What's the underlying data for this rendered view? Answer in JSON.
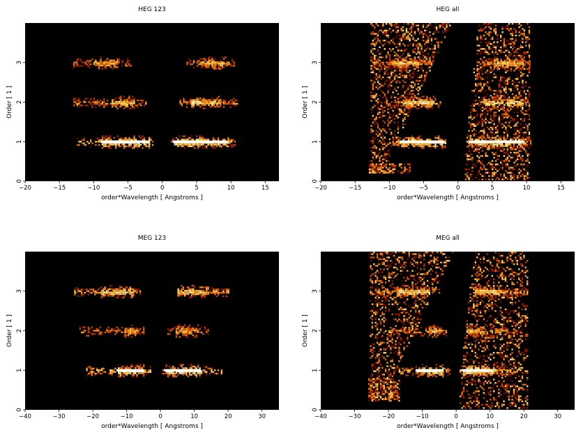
{
  "figure": {
    "background": "#ffffff",
    "plot_background": "#000000"
  },
  "chart_data": [
    {
      "type": "heatmap",
      "title": "HEG 123",
      "xlabel": "order*Wavelength [ Angstroms ]",
      "ylabel": "Order [ 1 ]",
      "xlim": [
        -20,
        17
      ],
      "ylim": [
        0,
        4
      ],
      "xticks": [
        -20,
        -15,
        -10,
        -5,
        0,
        5,
        10,
        15
      ],
      "yticks": [
        0,
        1,
        2,
        3
      ],
      "bands": [
        {
          "order": 1,
          "x_ranges": [
            [
              -12.5,
              -1.5
            ],
            [
              1.2,
              10.5
            ]
          ],
          "core_ranges": [
            [
              -9,
              -2
            ],
            [
              1.5,
              9.5
            ]
          ],
          "intensity": 1.0
        },
        {
          "order": 2,
          "x_ranges": [
            [
              -13,
              -2.5
            ],
            [
              2.5,
              11
            ]
          ],
          "core_ranges": [
            [
              -7.5,
              -4
            ],
            [
              4,
              8.5
            ]
          ],
          "intensity": 0.75
        },
        {
          "order": 3,
          "x_ranges": [
            [
              -13,
              -4.5
            ],
            [
              3.5,
              10.5
            ]
          ],
          "core_ranges": [
            [
              -10,
              -6.5
            ],
            [
              5.5,
              9.5
            ]
          ],
          "intensity": 0.6
        }
      ],
      "diffuse": []
    },
    {
      "type": "heatmap",
      "title": "HEG all",
      "xlabel": "order*Wavelength [ Angstroms ]",
      "ylabel": "Order [ 1 ]",
      "xlim": [
        -20,
        17
      ],
      "ylim": [
        0,
        4
      ],
      "xticks": [
        -20,
        -15,
        -10,
        -5,
        0,
        5,
        10,
        15
      ],
      "yticks": [
        0,
        1,
        2,
        3
      ],
      "bands": [
        {
          "order": 1,
          "x_ranges": [
            [
              -10,
              -1.5
            ],
            [
              1.2,
              10.5
            ]
          ],
          "core_ranges": [
            [
              -8.5,
              -2
            ],
            [
              1.5,
              9.5
            ]
          ],
          "intensity": 1.0
        },
        {
          "order": 2,
          "x_ranges": [
            [
              -10.5,
              -2.5
            ],
            [
              2.5,
              10.5
            ]
          ],
          "core_ranges": [
            [
              -8,
              -3.5
            ],
            [
              3.5,
              9.5
            ]
          ],
          "intensity": 0.85
        },
        {
          "order": 3,
          "x_ranges": [
            [
              -12.5,
              -4
            ],
            [
              3.5,
              10.5
            ]
          ],
          "core_ranges": [
            [
              -9.5,
              -6
            ],
            [
              5,
              9.5
            ]
          ],
          "intensity": 0.75
        }
      ],
      "diffuse": [
        {
          "x_range": [
            -13,
            -1
          ],
          "y_range": [
            0.2,
            4.0
          ],
          "edge": "left-wedge",
          "density": 0.35
        },
        {
          "x_range": [
            1,
            10.5
          ],
          "y_range": [
            0.05,
            4.0
          ],
          "edge": "right-wedge",
          "density": 0.35
        },
        {
          "x_range": [
            -13,
            -7
          ],
          "y_range": [
            0.2,
            0.45
          ],
          "edge": "blob",
          "density": 0.7
        }
      ]
    },
    {
      "type": "heatmap",
      "title": "MEG 123",
      "xlabel": "order*Wavelength [ Angstroms ]",
      "ylabel": "Order [ 1 ]",
      "xlim": [
        -40,
        35
      ],
      "ylim": [
        0,
        4
      ],
      "xticks": [
        -40,
        -30,
        -20,
        -10,
        0,
        10,
        20,
        30
      ],
      "yticks": [
        0,
        1,
        2,
        3
      ],
      "bands": [
        {
          "order": 1,
          "x_ranges": [
            [
              -22,
              -3
            ],
            [
              0.5,
              18
            ]
          ],
          "core_ranges": [
            [
              -13,
              -5
            ],
            [
              1,
              12
            ]
          ],
          "intensity": 1.0
        },
        {
          "order": 2,
          "x_ranges": [
            [
              -24,
              -5
            ],
            [
              2,
              14
            ]
          ],
          "core_ranges": [
            [
              -11,
              -7
            ],
            [
              4,
              11
            ]
          ],
          "intensity": 0.55
        },
        {
          "order": 3,
          "x_ranges": [
            [
              -26,
              -6
            ],
            [
              5,
              20
            ]
          ],
          "core_ranges": [
            [
              -18,
              -8
            ],
            [
              5,
              14
            ]
          ],
          "intensity": 0.8
        }
      ],
      "diffuse": []
    },
    {
      "type": "heatmap",
      "title": "MEG all",
      "xlabel": "order*Wavelength [ Angstroms ]",
      "ylabel": "Order [ 1 ]",
      "xlim": [
        -40,
        35
      ],
      "ylim": [
        0,
        4
      ],
      "xticks": [
        -40,
        -30,
        -20,
        -10,
        0,
        10,
        20,
        30
      ],
      "yticks": [
        0,
        1,
        2,
        3
      ],
      "bands": [
        {
          "order": 1,
          "x_ranges": [
            [
              -17,
              -2
            ],
            [
              1,
              19
            ]
          ],
          "core_ranges": [
            [
              -12,
              -4
            ],
            [
              1.5,
              11
            ]
          ],
          "intensity": 1.0
        },
        {
          "order": 2,
          "x_ranges": [
            [
              -20,
              -3
            ],
            [
              3,
              18
            ]
          ],
          "core_ranges": [
            [
              -9,
              -5
            ],
            [
              3,
              8
            ]
          ],
          "intensity": 0.7
        },
        {
          "order": 3,
          "x_ranges": [
            [
              -24,
              -5
            ],
            [
              5,
              21
            ]
          ],
          "core_ranges": [
            [
              -18,
              -8
            ],
            [
              5,
              13
            ]
          ],
          "intensity": 0.8
        }
      ],
      "diffuse": [
        {
          "x_range": [
            -26,
            -1
          ],
          "y_range": [
            0.25,
            4.0
          ],
          "edge": "left-wedge",
          "density": 0.3
        },
        {
          "x_range": [
            1,
            21
          ],
          "y_range": [
            0.05,
            4.0
          ],
          "edge": "right-wedge",
          "density": 0.3
        },
        {
          "x_range": [
            -26,
            -17
          ],
          "y_range": [
            0.25,
            0.8
          ],
          "edge": "blob",
          "density": 0.65
        }
      ]
    }
  ]
}
